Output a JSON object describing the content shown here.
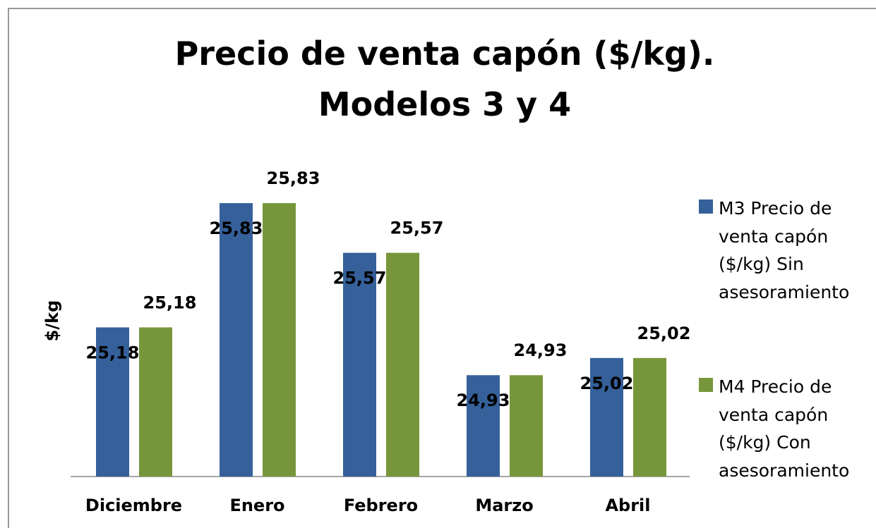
{
  "chart_data": {
    "type": "bar",
    "title": "Precio de venta capón ($/kg). Modelos 3 y 4",
    "y_label": "$/kg",
    "categories": [
      "Diciembre",
      "Enero",
      "Febrero",
      "Marzo",
      "Abril"
    ],
    "series": [
      {
        "name": "M3 Precio de venta capón ($/kg) Sin asesoramiento",
        "color": "#35609a",
        "values": [
          25.18,
          25.83,
          25.57,
          24.93,
          25.02
        ],
        "value_labels": [
          "25,18",
          "25,83",
          "25,57",
          "24,93",
          "25,02"
        ]
      },
      {
        "name": "M4 Precio de venta capón ($/kg) Con asesoramiento",
        "color": "#77963c",
        "values": [
          25.18,
          25.83,
          25.57,
          24.93,
          25.02
        ],
        "value_labels": [
          "25,18",
          "25,83",
          "25,57",
          "24,93",
          "25,02"
        ]
      }
    ],
    "ylim": [
      24.4,
      26.0
    ],
    "legend": "right"
  }
}
